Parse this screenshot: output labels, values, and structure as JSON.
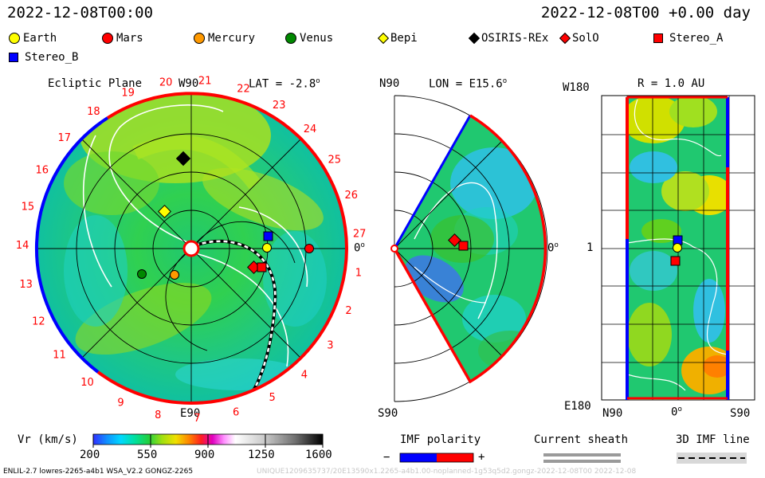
{
  "header": {
    "date_left": "2022-12-08T00:00",
    "date_right": "2022-12-08T00 +0.00 day"
  },
  "legend": [
    {
      "label": "Earth",
      "color": "#ffff00",
      "shape": "circle"
    },
    {
      "label": "Mars",
      "color": "#ff0000",
      "shape": "circle"
    },
    {
      "label": "Mercury",
      "color": "#ff9900",
      "shape": "circle"
    },
    {
      "label": "Venus",
      "color": "#008800",
      "shape": "circle"
    },
    {
      "label": "Bepi",
      "color": "#ffff00",
      "shape": "diamond"
    },
    {
      "label": "OSIRIS-REx",
      "color": "#000000",
      "shape": "diamond"
    },
    {
      "label": "SolO",
      "color": "#ff0000",
      "shape": "diamond"
    },
    {
      "label": "Stereo_A",
      "color": "#ff0000",
      "shape": "square"
    },
    {
      "label": "Stereo_B",
      "color": "#0000ff",
      "shape": "square"
    }
  ],
  "panel_ecliptic": {
    "title": "Ecliptic Plane",
    "lat_label": "LAT = -2.8",
    "degree_mark": "o",
    "top_label": "W90",
    "bottom_label": "E90",
    "right_label": "0",
    "right_degree": "o",
    "sector_numbers": [
      "1",
      "2",
      "3",
      "4",
      "5",
      "6",
      "7",
      "8",
      "9",
      "10",
      "11",
      "12",
      "13",
      "14",
      "15",
      "16",
      "17",
      "18",
      "19",
      "20",
      "21",
      "22",
      "23",
      "24",
      "25",
      "26",
      "27"
    ]
  },
  "panel_meridional": {
    "lon_label": "LON = E15.6",
    "degree_mark": "o",
    "top_label": "N90",
    "bottom_label": "S90",
    "right_label": "0",
    "right_degree": "o"
  },
  "panel_map": {
    "r_label": "R = 1.0 AU",
    "left_top": "W180",
    "left_mid": "1",
    "left_bottom": "E180",
    "bottom_left": "N90",
    "bottom_mid": "0",
    "bottom_mid_degree": "o",
    "bottom_right": "S90"
  },
  "colorbar": {
    "label": "Vr (km/s)",
    "ticks": [
      "200",
      "550",
      "900",
      "1250",
      "1600"
    ],
    "range": [
      200,
      1600
    ],
    "colors": [
      "#1010ff",
      "#2070ff",
      "#00c8ff",
      "#00e8b0",
      "#10d060",
      "#50d020",
      "#a0e010",
      "#e0e000",
      "#ff8000",
      "#ff2020",
      "#e000a0",
      "#ff80ff",
      "#ffffff",
      "#d0d0d0",
      "#909090",
      "#505050",
      "#000000"
    ]
  },
  "imf_legend": {
    "title": "IMF polarity",
    "minus": "−",
    "plus": "+",
    "neg_color": "#0000ff",
    "pos_color": "#ff0000"
  },
  "sheath_legend": {
    "title": "Current sheath"
  },
  "imf_line_legend": {
    "title": "3D IMF line"
  },
  "footer": {
    "left": "ENLIL-2.7 lowres-2265-a4b1 WSA_V2.2 GONGZ-2265",
    "right": "UNIQUE1209635737/20E13590x1.2265-a4b1.00-noplanned-1g53q5d2.gongz-2022-12-08T00    2022-12-08"
  }
}
